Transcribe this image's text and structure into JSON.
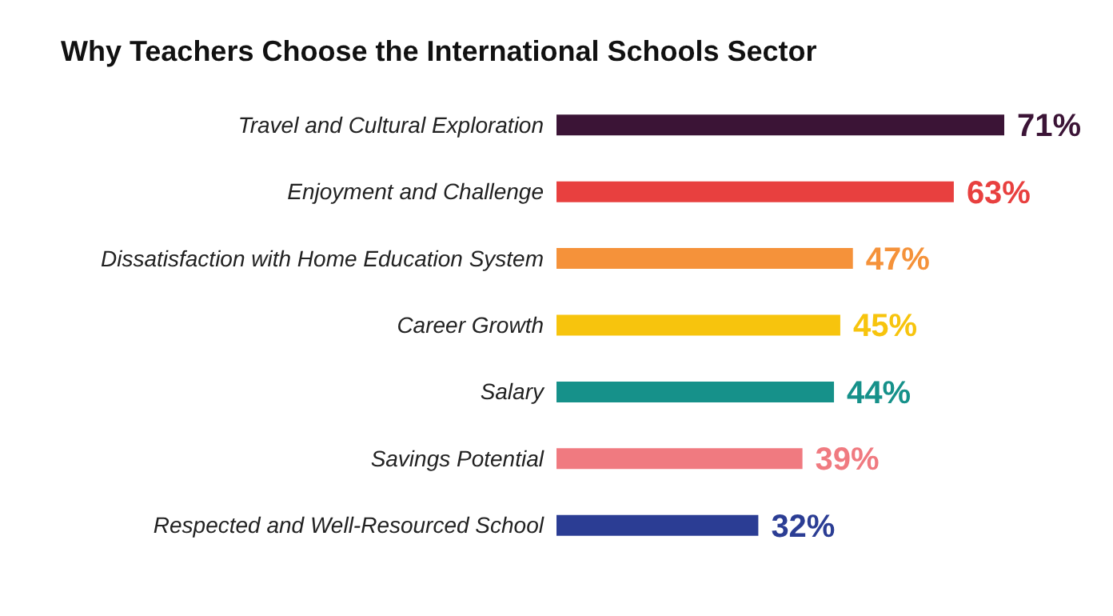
{
  "chart_data": {
    "type": "bar",
    "orientation": "horizontal",
    "title": "Why Teachers Choose the International Schools Sector",
    "categories": [
      "Travel and Cultural Exploration",
      "Enjoyment and Challenge",
      "Dissatisfaction with Home Education System",
      "Career Growth",
      "Salary",
      "Savings Potential",
      "Respected and Well-Resourced School"
    ],
    "values": [
      71,
      63,
      47,
      45,
      44,
      39,
      32
    ],
    "colors": [
      "#3b1436",
      "#e8403f",
      "#f5923a",
      "#f7c40d",
      "#16918a",
      "#f07a80",
      "#2b3d94"
    ],
    "value_labels": [
      "71%",
      "63%",
      "47%",
      "45%",
      "44%",
      "39%",
      "32%"
    ]
  }
}
